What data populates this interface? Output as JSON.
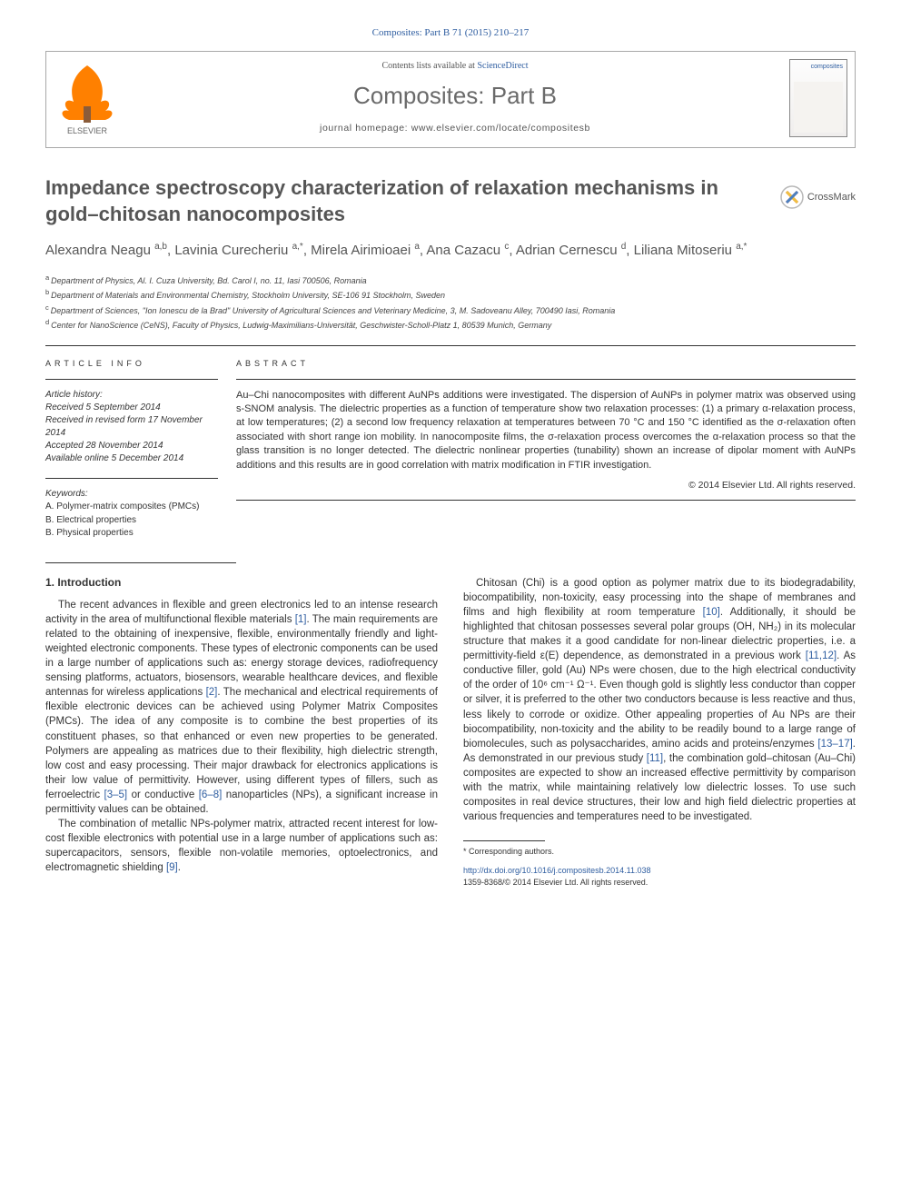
{
  "citation": "Composites: Part B 71 (2015) 210–217",
  "header": {
    "contents_pre": "Contents lists available at ",
    "contents_link": "ScienceDirect",
    "journal": "Composites: Part B",
    "homepage_pre": "journal homepage: ",
    "homepage_url": "www.elsevier.com/locate/compositesb",
    "publisher": "ELSEVIER",
    "cover_label": "composites"
  },
  "crossmark": "CrossMark",
  "title": "Impedance spectroscopy characterization of relaxation mechanisms in gold–chitosan nanocomposites",
  "authors_html": "Alexandra Neagu <sup>a,b</sup>, Lavinia Curecheriu <sup>a,*</sup>, Mirela Airimioaei <sup>a</sup>, Ana Cazacu <sup>c</sup>, Adrian Cernescu <sup>d</sup>, Liliana Mitoseriu <sup>a,*</sup>",
  "affiliations": [
    {
      "sup": "a",
      "text": "Department of Physics, Al. I. Cuza University, Bd. Carol I, no. 11, Iasi 700506, Romania"
    },
    {
      "sup": "b",
      "text": "Department of Materials and Environmental Chemistry, Stockholm University, SE-106 91 Stockholm, Sweden"
    },
    {
      "sup": "c",
      "text": "Department of Sciences, \"Ion Ionescu de la Brad\" University of Agricultural Sciences and Veterinary Medicine, 3, M. Sadoveanu Alley, 700490 Iasi, Romania"
    },
    {
      "sup": "d",
      "text": "Center for NanoScience (CeNS), Faculty of Physics, Ludwig-Maximilians-Universität, Geschwister-Scholl-Platz 1, 80539 Munich, Germany"
    }
  ],
  "article_info": {
    "head": "ARTICLE INFO",
    "history_label": "Article history:",
    "history": [
      "Received 5 September 2014",
      "Received in revised form 17 November 2014",
      "Accepted 28 November 2014",
      "Available online 5 December 2014"
    ],
    "keywords_label": "Keywords:",
    "keywords": [
      "A. Polymer-matrix composites (PMCs)",
      "B. Electrical properties",
      "B. Physical properties"
    ]
  },
  "abstract": {
    "head": "ABSTRACT",
    "text": "Au–Chi nanocomposites with different AuNPs additions were investigated. The dispersion of AuNPs in polymer matrix was observed using s-SNOM analysis. The dielectric properties as a function of temperature show two relaxation processes: (1) a primary α-relaxation process, at low temperatures; (2) a second low frequency relaxation at temperatures between 70 °C and 150 °C identified as the σ-relaxation often associated with short range ion mobility. In nanocomposite films, the σ-relaxation process overcomes the α-relaxation process so that the glass transition is no longer detected. The dielectric nonlinear properties (tunability) shown an increase of dipolar moment with AuNPs additions and this results are in good correlation with matrix modification in FTIR investigation.",
    "copyright": "© 2014 Elsevier Ltd. All rights reserved."
  },
  "section1": {
    "head": "1. Introduction",
    "p1_a": "The recent advances in flexible and green electronics led to an intense research activity in the area of multifunctional flexible materials ",
    "p1_r1": "[1]",
    "p1_b": ". The main requirements are related to the obtaining of inexpensive, flexible, environmentally friendly and light-weighted electronic components. These types of electronic components can be used in a large number of applications such as: energy storage devices, radiofrequency sensing platforms, actuators, biosensors, wearable healthcare devices, and flexible antennas for wireless applications ",
    "p1_r2": "[2]",
    "p1_c": ". The mechanical and electrical requirements of flexible electronic devices can be achieved using Polymer Matrix Composites (PMCs). The idea of any composite is to combine the best properties of its constituent phases, so that enhanced or even new properties to be generated. Polymers are appealing as matrices due to their flexibility, high dielectric strength, low cost and easy processing. Their major drawback for electronics applications is their low value of permittivity. However, using different types of fillers, such as ferroelectric ",
    "p1_r3": "[3–5]",
    "p1_d": " or conductive ",
    "p1_r4": "[6–8]",
    "p1_e": " nanoparticles (NPs), a significant increase in permittivity values can be obtained.",
    "p2_a": "The combination of metallic NPs-polymer matrix, attracted recent interest for low-cost flexible electronics with potential use ",
    "p2_b": "in a large number of applications such as: supercapacitors, sensors, flexible non-volatile memories, optoelectronics, and electromagnetic shielding ",
    "p2_r1": "[9]",
    "p2_c": ".",
    "p3_a": "Chitosan (Chi) is a good option as polymer matrix due to its biodegradability, biocompatibility, non-toxicity, easy processing into the shape of membranes and films and high flexibility at room temperature ",
    "p3_r1": "[10]",
    "p3_b": ". Additionally, it should be highlighted that chitosan possesses several polar groups (OH, NH₂) in its molecular structure that makes it a good candidate for non-linear dielectric properties, i.e. a permittivity-field ε(E) dependence, as demonstrated in a previous work ",
    "p3_r2": "[11,12]",
    "p3_c": ". As conductive filler, gold (Au) NPs were chosen, due to the high electrical conductivity of the order of 10⁶ cm⁻¹ Ω⁻¹. Even though gold is slightly less conductor than copper or silver, it is preferred to the other two conductors because is less reactive and thus, less likely to corrode or oxidize. Other appealing properties of Au NPs are their biocompatibility, non-toxicity and the ability to be readily bound to a large range of biomolecules, such as polysaccharides, amino acids and proteins/enzymes ",
    "p3_r3": "[13–17]",
    "p3_d": ". As demonstrated in our previous study ",
    "p3_r4": "[11]",
    "p3_e": ", the combination gold–chitosan (Au–Chi) composites are expected to show an increased effective permittivity by comparison with the matrix, while maintaining relatively low dielectric losses. To use such composites in real device structures, their low and high field dielectric properties at various frequencies and temperatures need to be investigated."
  },
  "footer": {
    "corr": "* Corresponding authors.",
    "doi_url": "http://dx.doi.org/10.1016/j.compositesb.2014.11.038",
    "issn_line": "1359-8368/© 2014 Elsevier Ltd. All rights reserved."
  },
  "colors": {
    "link": "#2e5da0",
    "text": "#333333",
    "heading_gray": "#555555",
    "elsevier_orange": "#ff8000"
  }
}
